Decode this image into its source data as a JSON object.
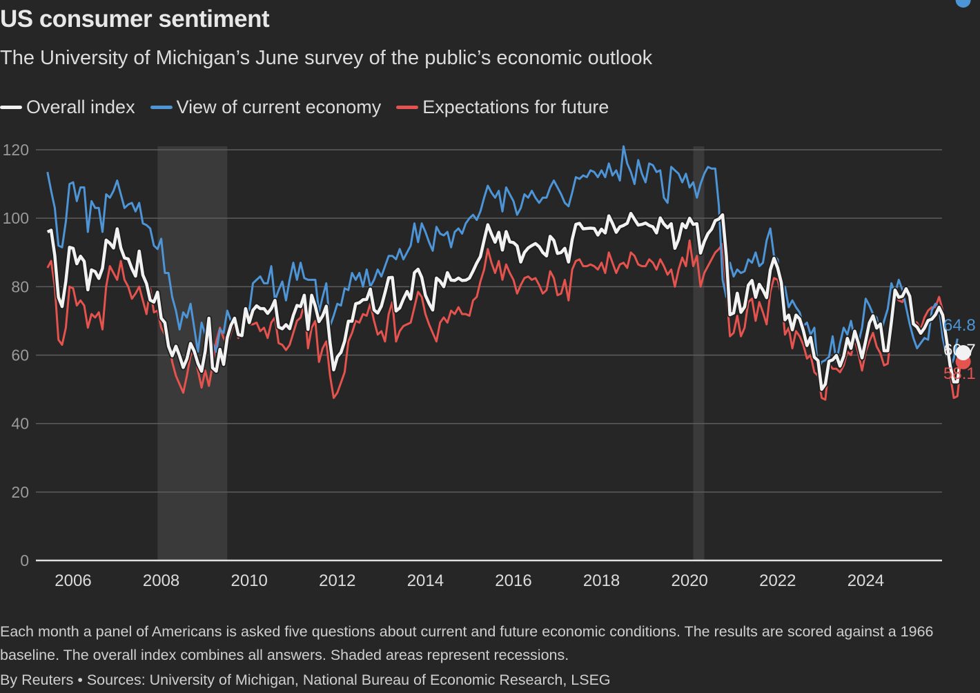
{
  "header": {
    "title": "US consumer sentiment",
    "subtitle": "The University of Michigan’s June survey of the public’s economic outlook"
  },
  "legend": [
    {
      "label": "Overall index",
      "color": "#f2f2f2"
    },
    {
      "label": "View of current economy",
      "color": "#4d95d6"
    },
    {
      "label": "Expectations for future",
      "color": "#e5534f"
    }
  ],
  "footer": {
    "note": "Each month a panel of Americans is asked five questions about current and future economic conditions. The results are scored against a 1966 baseline. The overall index combines all answers. Shaded areas represent recessions.",
    "credit": "By Reuters • Sources: University of Michigan, National Bureau of Economic Research, LSEG"
  },
  "chart_data": {
    "type": "line",
    "title": "US consumer sentiment",
    "subtitle": "The University of Michigan’s June survey of the public’s economic outlook",
    "xlabel": "",
    "ylabel": "",
    "x_start": "2005-06",
    "x_end": "2025-06",
    "frequency": "monthly",
    "xlim": [
      "2005-06",
      "2025-06"
    ],
    "ylim": [
      0,
      120
    ],
    "y_ticks": [
      0,
      20,
      40,
      60,
      80,
      100,
      120
    ],
    "x_ticks": [
      "2006",
      "2008",
      "2010",
      "2012",
      "2014",
      "2016",
      "2018",
      "2020",
      "2022",
      "2024"
    ],
    "grid": "horizontal",
    "legend_position": "top-left",
    "recessions": [
      {
        "start": "2007-12",
        "end": "2009-06"
      },
      {
        "start": "2020-02",
        "end": "2020-04"
      }
    ],
    "end_labels": [
      {
        "series": "View of current economy",
        "value": 64.8
      },
      {
        "series": "Overall index",
        "value": 60.7
      },
      {
        "series": "Expectations for future",
        "value": 58.1
      }
    ],
    "series": [
      {
        "name": "Overall index",
        "color": "#f2f2f2",
        "values": [
          96.0,
          96.5,
          89.1,
          76.9,
          74.2,
          81.6,
          91.5,
          91.2,
          86.7,
          88.9,
          87.4,
          79.1,
          84.9,
          84.4,
          82.4,
          85.4,
          93.6,
          92.7,
          91.3,
          96.9,
          91.3,
          88.4,
          88.1,
          85.3,
          83.1,
          90.4,
          83.4,
          80.9,
          76.1,
          75.5,
          78.4,
          70.8,
          69.5,
          62.6,
          59.8,
          62.6,
          59.8,
          56.4,
          58.9,
          63.4,
          61.2,
          57.6,
          55.3,
          61.2,
          70.8,
          56.3,
          55.3,
          61.7,
          57.3,
          65.1,
          68.7,
          70.8,
          66.0,
          65.7,
          73.6,
          69.5,
          73.1,
          74.4,
          73.6,
          73.6,
          72.2,
          73.6,
          76.0,
          68.2,
          67.7,
          68.9,
          67.7,
          71.6,
          74.5,
          74.2,
          77.5,
          67.5,
          77.5,
          74.3,
          69.8,
          71.5,
          74.3,
          63.7,
          55.7,
          59.5,
          60.8,
          64.1,
          69.9,
          69.9,
          75.0,
          75.3,
          76.2,
          76.3,
          79.3,
          73.2,
          72.3,
          74.3,
          78.3,
          82.6,
          82.7,
          72.9,
          73.8,
          76.4,
          78.6,
          76.4,
          84.1,
          85.1,
          82.7,
          77.5,
          75.1,
          73.2,
          82.5,
          81.6,
          80.0,
          84.1,
          81.9,
          81.8,
          82.5,
          81.8,
          81.9,
          82.5,
          84.6,
          86.9,
          88.8,
          93.6,
          98.1,
          95.4,
          93.0,
          95.9,
          90.7,
          96.1,
          93.1,
          92.9,
          91.9,
          87.2,
          90.0,
          91.3,
          92.0,
          92.6,
          91.7,
          90.0,
          89.0,
          94.7,
          93.5,
          89.7,
          90.0,
          91.2,
          87.2,
          93.8,
          98.2,
          98.5,
          96.9,
          97.0,
          97.1,
          97.0,
          95.1,
          96.8,
          95.7,
          100.7,
          98.5,
          95.9,
          97.5,
          97.9,
          98.5,
          101.4,
          99.7,
          98.0,
          98.2,
          98.6,
          97.9,
          97.5,
          95.7,
          100.1,
          98.3,
          97.2,
          98.4,
          91.2,
          93.8,
          98.4,
          97.2,
          100.0,
          98.2,
          98.4,
          89.8,
          93.2,
          95.5,
          96.8,
          99.3,
          99.8,
          101.0,
          89.1,
          71.8,
          72.3,
          78.1,
          72.5,
          74.1,
          80.4,
          81.8,
          76.9,
          80.7,
          79.0,
          76.8,
          84.9,
          88.3,
          85.5,
          81.2,
          70.3,
          71.7,
          67.4,
          71.7,
          70.6,
          67.2,
          62.8,
          65.2,
          59.4,
          58.4,
          50.0,
          51.5,
          58.2,
          58.6,
          59.9,
          56.8,
          59.7,
          64.9,
          62.0,
          67.0,
          63.5,
          59.2,
          64.2,
          69.4,
          71.5,
          67.9,
          69.1,
          61.3,
          61.3,
          69.7,
          79.0,
          76.9,
          77.2,
          79.4,
          77.2,
          69.1,
          68.2,
          66.4,
          67.9,
          70.1,
          70.5,
          71.8,
          74.0,
          71.7,
          64.7,
          57.0,
          52.2,
          52.2,
          60.7
        ]
      },
      {
        "name": "View of current economy",
        "color": "#4d95d6",
        "values": [
          113.5,
          108.0,
          103.0,
          92.0,
          91.5,
          99.0,
          110.0,
          110.5,
          105.0,
          109.0,
          109.0,
          96.0,
          105.0,
          103.0,
          103.0,
          96.0,
          107.0,
          106.0,
          108.0,
          111.0,
          107.0,
          103.0,
          104.0,
          104.5,
          102.0,
          104.5,
          98.5,
          98.0,
          97.0,
          92.0,
          91.0,
          94.0,
          84.0,
          84.0,
          77.0,
          73.0,
          67.5,
          72.5,
          71.0,
          75.0,
          68.0,
          61.0,
          69.5,
          66.0,
          64.5,
          63.5,
          61.0,
          67.5,
          66.5,
          73.0,
          70.0,
          69.0,
          66.0,
          67.5,
          73.0,
          73.0,
          81.0,
          82.0,
          83.0,
          81.0,
          81.0,
          86.0,
          76.0,
          79.0,
          81.5,
          76.0,
          82.0,
          87.0,
          82.0,
          87.0,
          82.5,
          82.0,
          82.0,
          82.0,
          72.5,
          77.0,
          81.0,
          68.5,
          71.5,
          75.0,
          74.5,
          79.5,
          79.0,
          84.0,
          82.0,
          84.0,
          80.0,
          85.0,
          80.0,
          82.0,
          85.0,
          83.0,
          86.0,
          89.0,
          89.0,
          88.0,
          91.0,
          88.0,
          90.0,
          92.0,
          98.5,
          93.0,
          98.5,
          96.0,
          93.0,
          90.5,
          97.5,
          95.5,
          95.0,
          96.0,
          91.5,
          96.0,
          97.0,
          95.5,
          98.5,
          100.0,
          101.0,
          99.5,
          102.0,
          106.0,
          109.5,
          107.5,
          106.0,
          108.0,
          102.0,
          109.0,
          107.0,
          105.0,
          101.0,
          103.0,
          107.0,
          106.0,
          108.0,
          106.0,
          104.5,
          106.0,
          106.0,
          109.0,
          111.0,
          109.0,
          107.0,
          104.5,
          103.5,
          107.5,
          112.0,
          111.5,
          112.5,
          112.0,
          114.0,
          113.5,
          112.0,
          114.0,
          112.0,
          116.0,
          112.5,
          114.0,
          111.0,
          121.0,
          116.0,
          113.5,
          110.0,
          117.0,
          113.0,
          110.5,
          116.0,
          115.5,
          113.5,
          114.0,
          106.0,
          104.5,
          115.0,
          114.0,
          113.0,
          110.5,
          113.0,
          109.0,
          110.5,
          106.0,
          110.0,
          113.0,
          115.0,
          114.5,
          114.5,
          103.5,
          82.0,
          77.0,
          87.0,
          83.0,
          85.0,
          84.0,
          84.5,
          88.0,
          87.0,
          90.0,
          86.0,
          87.0,
          93.5,
          97.0,
          89.0,
          88.0,
          78.0,
          80.0,
          74.0,
          76.0,
          74.0,
          72.5,
          68.5,
          69.5,
          66.0,
          68.0,
          55.5,
          58.0,
          58.5,
          59.5,
          65.5,
          58.0,
          63.5,
          68.0,
          66.0,
          70.0,
          64.5,
          63.5,
          68.0,
          76.5,
          74.5,
          72.0,
          71.0,
          66.0,
          70.0,
          73.5,
          81.0,
          78.0,
          82.0,
          79.0,
          74.0,
          69.0,
          65.0,
          62.0,
          63.5,
          65.0,
          64.5,
          73.0,
          75.0,
          74.0,
          65.0,
          60.0,
          56.5,
          59.0,
          64.8
        ]
      },
      {
        "name": "Expectations for future",
        "color": "#e5534f",
        "values": [
          85.5,
          87.5,
          80.0,
          64.5,
          63.0,
          68.0,
          80.0,
          79.5,
          74.5,
          76.0,
          74.5,
          68.0,
          72.0,
          71.0,
          72.5,
          67.5,
          80.0,
          86.0,
          84.0,
          82.0,
          87.5,
          82.0,
          80.0,
          76.5,
          78.0,
          80.0,
          76.0,
          72.0,
          79.5,
          72.5,
          73.0,
          68.0,
          66.0,
          65.0,
          58.0,
          54.0,
          51.5,
          49.0,
          54.0,
          60.0,
          61.5,
          55.5,
          50.5,
          55.5,
          51.0,
          57.0,
          64.0,
          68.0,
          65.0,
          63.0,
          66.5,
          70.0,
          65.0,
          66.0,
          72.0,
          69.0,
          69.0,
          69.5,
          67.0,
          68.0,
          65.0,
          69.5,
          71.0,
          63.5,
          63.0,
          61.5,
          63.0,
          66.5,
          70.0,
          71.0,
          75.0,
          62.0,
          68.0,
          70.0,
          58.0,
          62.0,
          64.0,
          54.0,
          47.5,
          49.0,
          52.0,
          55.0,
          64.0,
          66.5,
          70.0,
          69.5,
          72.0,
          71.5,
          75.0,
          70.0,
          66.0,
          67.0,
          64.0,
          72.0,
          75.5,
          64.0,
          67.0,
          68.5,
          69.0,
          69.5,
          74.0,
          78.5,
          77.0,
          72.0,
          69.0,
          66.5,
          64.0,
          69.5,
          71.0,
          69.5,
          73.0,
          72.0,
          74.0,
          72.0,
          72.0,
          71.5,
          76.0,
          77.0,
          81.5,
          85.0,
          91.0,
          87.0,
          84.0,
          87.5,
          82.0,
          86.5,
          84.0,
          82.0,
          78.0,
          80.5,
          82.5,
          83.0,
          82.0,
          82.5,
          80.5,
          78.0,
          79.0,
          84.5,
          82.5,
          77.5,
          78.0,
          82.0,
          76.0,
          85.0,
          87.5,
          88.0,
          86.0,
          86.0,
          86.5,
          86.0,
          85.0,
          87.0,
          84.0,
          90.0,
          87.0,
          84.0,
          86.5,
          87.0,
          85.5,
          90.0,
          89.0,
          86.5,
          86.0,
          86.0,
          88.0,
          87.0,
          85.0,
          88.0,
          86.0,
          83.5,
          85.0,
          80.0,
          85.0,
          88.5,
          86.0,
          93.5,
          86.0,
          89.0,
          80.0,
          84.0,
          86.0,
          88.0,
          90.0,
          91.0,
          92.5,
          79.0,
          65.5,
          66.5,
          71.5,
          65.5,
          68.0,
          75.5,
          76.5,
          70.0,
          75.5,
          72.5,
          69.0,
          78.5,
          82.5,
          82.0,
          77.5,
          66.0,
          68.0,
          62.0,
          67.0,
          65.5,
          63.0,
          59.0,
          60.0,
          55.0,
          54.0,
          47.5,
          47.0,
          57.5,
          56.0,
          56.0,
          55.0,
          57.0,
          61.0,
          60.0,
          64.5,
          60.5,
          55.5,
          61.0,
          64.0,
          66.5,
          62.5,
          60.5,
          57.0,
          57.5,
          67.0,
          77.0,
          76.0,
          75.5,
          79.0,
          76.0,
          70.0,
          69.5,
          67.5,
          71.0,
          73.0,
          74.0,
          74.0,
          77.0,
          73.0,
          65.0,
          54.5,
          47.5,
          48.0,
          58.1
        ]
      }
    ]
  }
}
